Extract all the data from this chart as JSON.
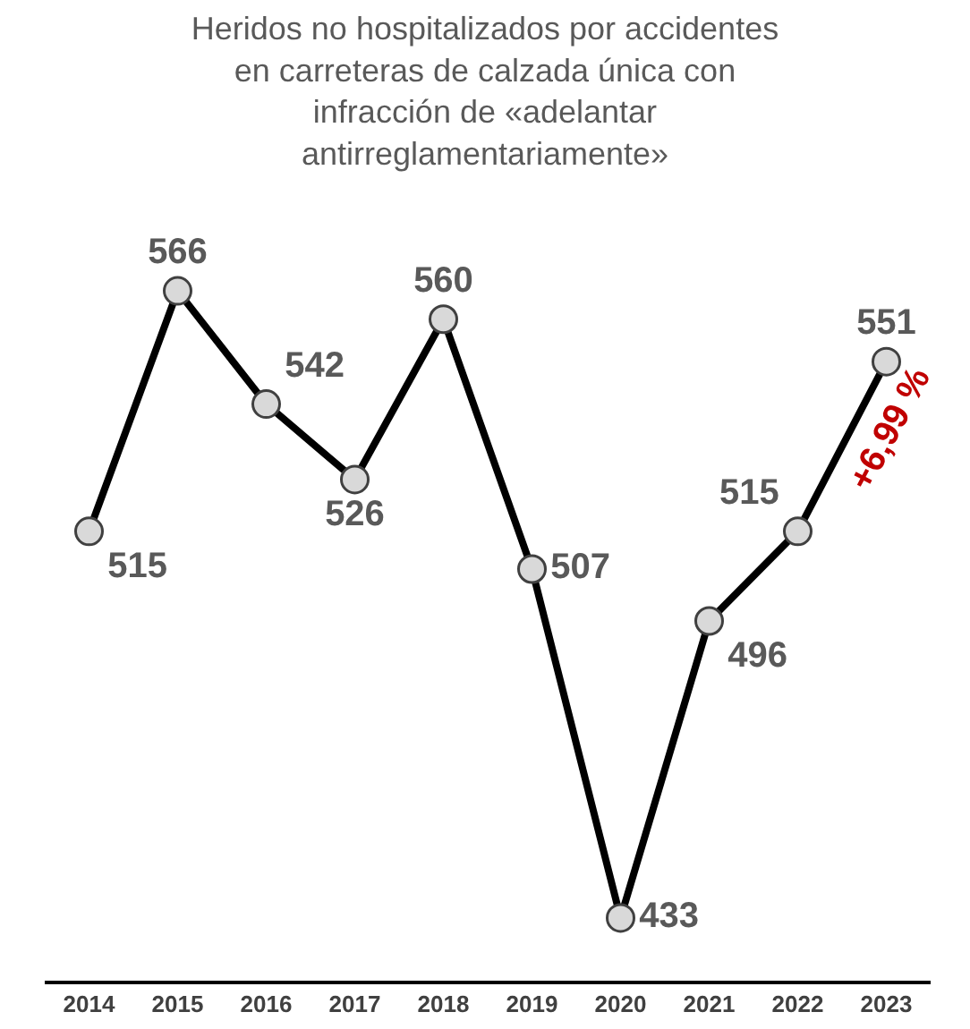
{
  "chart_data": {
    "type": "line",
    "title": "Heridos no hospitalizados por accidentes\nen carreteras de calzada única con\ninfracción de «adelantar\nantirreglamentariamente»",
    "categories": [
      "2014",
      "2015",
      "2016",
      "2017",
      "2018",
      "2019",
      "2020",
      "2021",
      "2022",
      "2023"
    ],
    "series": [
      {
        "color": "#000000",
        "values": [
          515,
          566,
          542,
          526,
          560,
          507,
          433,
          496,
          515,
          551
        ]
      }
    ],
    "data_labels": true,
    "marker": "circle",
    "line_style": "solid",
    "grid": false,
    "annotations": [
      "+6,99 %"
    ]
  }
}
